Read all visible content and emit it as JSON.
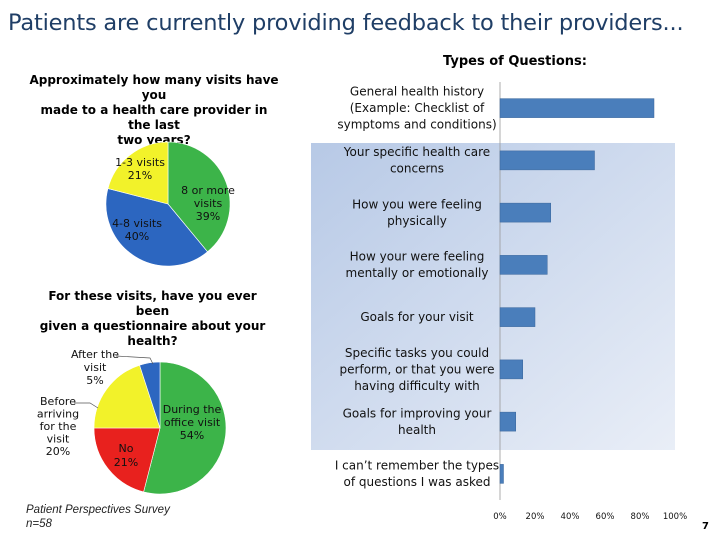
{
  "page_title": "Patients are currently providing feedback to their providers...",
  "source_note": [
    "Patient Perspectives Survey",
    "n=58"
  ],
  "page_number": "7",
  "chart_data": [
    {
      "type": "pie",
      "title": [
        "Approximately how many visits have you",
        "made to a health care provider in the last",
        "two years?"
      ],
      "slices": [
        {
          "label": [
            "8 or more",
            "visits",
            "39%"
          ],
          "value": 39,
          "color": "#3cb449"
        },
        {
          "label": [
            "4-8 visits",
            "40%"
          ],
          "value": 40,
          "color": "#2c66c0"
        },
        {
          "label": [
            "1-3 visits",
            "21%"
          ],
          "value": 21,
          "color": "#f2f22a"
        }
      ]
    },
    {
      "type": "pie",
      "title": [
        "For these visits, have you ever been",
        "given a questionnaire about your",
        "health?"
      ],
      "slices": [
        {
          "label": [
            "During the",
            "office visit",
            "54%"
          ],
          "value": 54,
          "color": "#3cb449"
        },
        {
          "label": [
            "No",
            "21%"
          ],
          "value": 21,
          "color": "#e8211e"
        },
        {
          "label": [
            "Before",
            "arriving",
            "for the",
            "visit",
            "20%"
          ],
          "value": 20,
          "color": "#f2f22a"
        },
        {
          "label": [
            "After the",
            "visit",
            "5%"
          ],
          "value": 5,
          "color": "#2c66c0"
        }
      ]
    },
    {
      "type": "bar",
      "orientation": "horizontal",
      "title": "Types of Questions:",
      "bar_color": "#4a7ebb",
      "categories": [
        [
          "General health history",
          "(Example: Checklist of",
          "symptoms and conditions)"
        ],
        [
          "Your specific health care",
          "concerns"
        ],
        [
          "How you were feeling",
          "physically"
        ],
        [
          "How your were feeling",
          "mentally or emotionally"
        ],
        [
          "Goals for your visit"
        ],
        [
          "Specific tasks you could",
          "perform, or that you were",
          "having difficulty with"
        ],
        [
          "Goals for improving your",
          "health"
        ],
        [
          "I can’t remember the types",
          "of questions I was asked"
        ]
      ],
      "values": [
        88,
        54,
        29,
        27,
        20,
        13,
        9,
        2
      ],
      "xticks": [
        "0%",
        "20%",
        "40%",
        "60%",
        "80%",
        "100%"
      ],
      "xlim": [
        0,
        100
      ]
    }
  ]
}
